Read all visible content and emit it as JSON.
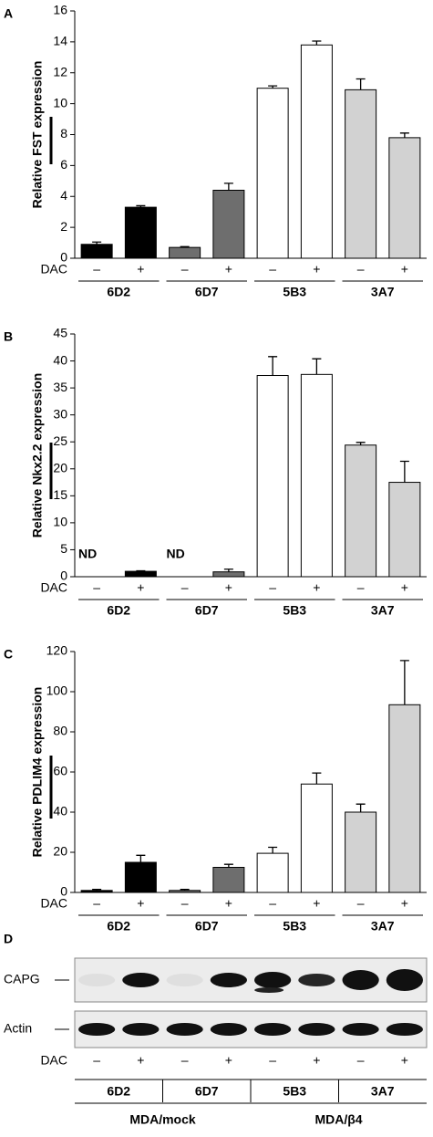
{
  "chart_data": [
    {
      "type": "bar",
      "panel": "A",
      "y_label": "Relative FST expression",
      "x_label": "DAC",
      "categories": [
        "–",
        "+",
        "–",
        "+",
        "–",
        "+",
        "–",
        "+"
      ],
      "groups": [
        "6D2",
        "6D7",
        "5B3",
        "3A7"
      ],
      "values": [
        0.9,
        3.3,
        0.7,
        4.4,
        11.0,
        13.8,
        10.9,
        7.8
      ],
      "errors": [
        0.15,
        0.1,
        0.05,
        0.45,
        0.15,
        0.25,
        0.7,
        0.3
      ],
      "colors": [
        "#000000",
        "#000000",
        "#6e6e6e",
        "#6e6e6e",
        "#ffffff",
        "#ffffff",
        "#d2d2d2",
        "#d2d2d2"
      ],
      "ylim": [
        0,
        16
      ],
      "yticks": [
        0,
        2,
        4,
        6,
        8,
        10,
        12,
        14,
        16
      ]
    },
    {
      "type": "bar",
      "panel": "B",
      "y_label": "Relative Nkx2.2 expression",
      "x_label": "DAC",
      "categories": [
        "–",
        "+",
        "–",
        "+",
        "–",
        "+",
        "–",
        "+"
      ],
      "groups": [
        "6D2",
        "6D7",
        "5B3",
        "3A7"
      ],
      "values": [
        null,
        1.0,
        null,
        0.9,
        37.3,
        37.5,
        24.4,
        17.5
      ],
      "value_labels": [
        "ND",
        null,
        "ND",
        null,
        null,
        null,
        null,
        null
      ],
      "errors": [
        null,
        0.1,
        null,
        0.5,
        3.5,
        2.9,
        0.5,
        3.9
      ],
      "colors": [
        "#000000",
        "#000000",
        "#6e6e6e",
        "#6e6e6e",
        "#ffffff",
        "#ffffff",
        "#d2d2d2",
        "#d2d2d2"
      ],
      "ylim": [
        0,
        45
      ],
      "yticks": [
        0,
        5,
        10,
        15,
        20,
        25,
        30,
        35,
        40,
        45
      ]
    },
    {
      "type": "bar",
      "panel": "C",
      "y_label": "Relative PDLIM4 expression",
      "x_label": "DAC",
      "categories": [
        "–",
        "+",
        "–",
        "+",
        "–",
        "+",
        "–",
        "+"
      ],
      "groups": [
        "6D2",
        "6D7",
        "5B3",
        "3A7"
      ],
      "values": [
        1,
        15,
        1,
        12.5,
        19.5,
        54,
        40,
        93.5
      ],
      "errors": [
        0.5,
        3.5,
        0.5,
        1.5,
        3,
        5.5,
        4,
        22
      ],
      "colors": [
        "#000000",
        "#000000",
        "#6e6e6e",
        "#6e6e6e",
        "#ffffff",
        "#ffffff",
        "#d2d2d2",
        "#d2d2d2"
      ],
      "ylim": [
        0,
        120
      ],
      "yticks": [
        0,
        20,
        40,
        60,
        80,
        100,
        120
      ]
    }
  ],
  "panel_d": {
    "panel": "D",
    "rows": [
      "CAPG",
      "Actin"
    ],
    "x_label": "DAC",
    "categories": [
      "–",
      "+",
      "–",
      "+",
      "–",
      "+",
      "–",
      "+"
    ],
    "groups": [
      "6D2",
      "6D7",
      "5B3",
      "3A7"
    ],
    "supergroups": [
      "MDA/mock",
      "MDA/β4"
    ]
  }
}
